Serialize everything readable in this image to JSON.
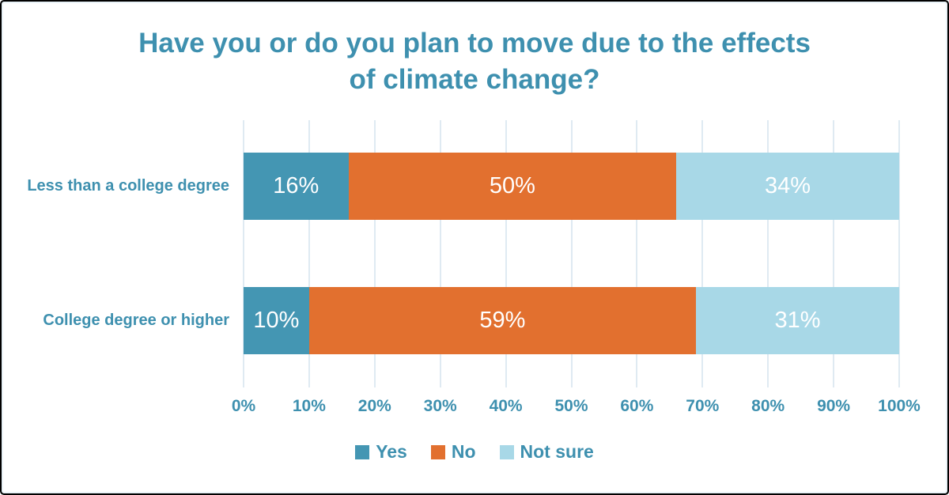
{
  "chart_data": {
    "type": "bar",
    "orientation": "horizontal-stacked",
    "title": "Have you or do you plan to move due to the effects of climate change?",
    "categories": [
      "Less than a college degree",
      "College degree or higher"
    ],
    "series": [
      {
        "name": "Yes",
        "color": "#4496b3",
        "values": [
          16,
          10
        ]
      },
      {
        "name": "No",
        "color": "#e2702f",
        "values": [
          50,
          59
        ]
      },
      {
        "name": "Not sure",
        "color": "#a8d8e7",
        "values": [
          34,
          31
        ]
      }
    ],
    "value_suffix": "%",
    "x_ticks": [
      "0%",
      "10%",
      "20%",
      "30%",
      "40%",
      "50%",
      "60%",
      "70%",
      "80%",
      "90%",
      "100%"
    ],
    "xlim": [
      0,
      100
    ],
    "grid": true,
    "legend_position": "bottom",
    "style": {
      "text_color": "#3e90af",
      "gridline_color": "#dfeaf2",
      "bar_label_color": "#ffffff"
    }
  }
}
